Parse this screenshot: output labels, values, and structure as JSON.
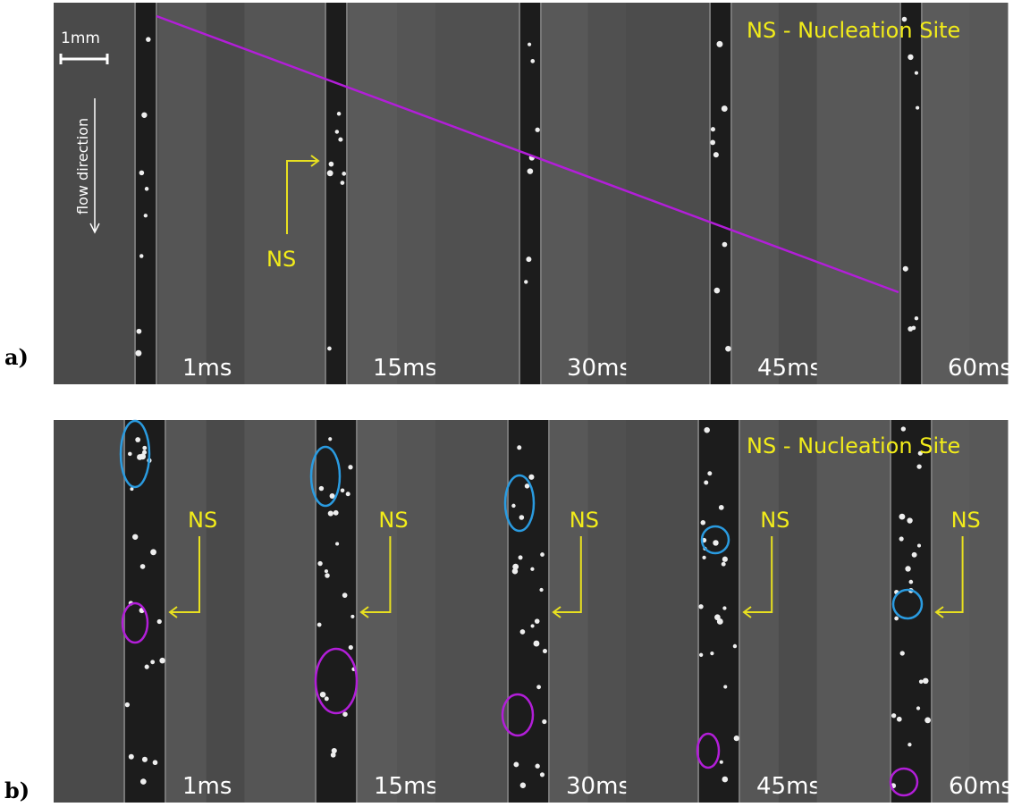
{
  "panels": [
    {
      "label": "a)",
      "legend": "NS - Nucleation Site",
      "scale_bar": "1mm",
      "flow": "flow direction",
      "annotation": "NS",
      "frames": [
        "1ms",
        "15ms",
        "30ms",
        "45ms",
        "60ms"
      ]
    },
    {
      "label": "b)",
      "legend": "NS - Nucleation Site",
      "annotations": [
        "NS",
        "NS",
        "NS",
        "NS",
        "NS"
      ],
      "frames": [
        "1ms",
        "15ms",
        "30ms",
        "45ms",
        "60ms"
      ]
    }
  ]
}
